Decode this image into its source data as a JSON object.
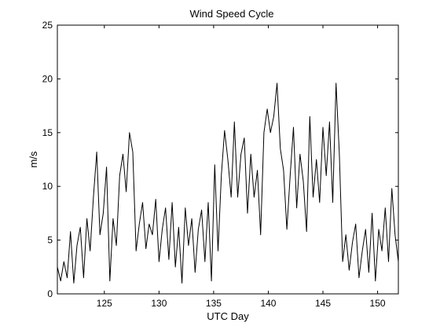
{
  "chart_data": {
    "type": "line",
    "title": "Wind Speed Cycle",
    "xlabel": "UTC Day",
    "ylabel": "m/s",
    "xlim": [
      120.7,
      151.9
    ],
    "ylim": [
      0,
      25
    ],
    "xticks": [
      125,
      130,
      135,
      140,
      145,
      150
    ],
    "yticks": [
      0,
      5,
      10,
      15,
      20,
      25
    ],
    "grid": false,
    "line_color": "#000000",
    "series": [
      {
        "x": [
          120.7,
          121.0,
          121.3,
          121.6,
          121.9,
          122.2,
          122.5,
          122.8,
          123.1,
          123.4,
          123.7,
          124.0,
          124.3,
          124.6,
          124.9,
          125.2,
          125.5,
          125.8,
          126.1,
          126.4,
          126.7,
          127.0,
          127.3,
          127.6,
          127.9,
          128.2,
          128.5,
          128.8,
          129.1,
          129.4,
          129.7,
          130.0,
          130.3,
          130.6,
          130.9,
          131.2,
          131.5,
          131.8,
          132.1,
          132.4,
          132.7,
          133.0,
          133.3,
          133.6,
          133.9,
          134.2,
          134.5,
          134.8,
          135.1,
          135.4,
          135.7,
          136.0,
          136.3,
          136.6,
          136.9,
          137.2,
          137.5,
          137.8,
          138.1,
          138.4,
          138.7,
          139.0,
          139.3,
          139.6,
          139.9,
          140.2,
          140.5,
          140.8,
          141.1,
          141.4,
          141.7,
          142.0,
          142.3,
          142.6,
          142.9,
          143.2,
          143.5,
          143.8,
          144.1,
          144.4,
          144.7,
          145.0,
          145.3,
          145.6,
          145.9,
          146.2,
          146.5,
          146.8,
          147.1,
          147.4,
          147.7,
          148.0,
          148.3,
          148.6,
          148.9,
          149.2,
          149.5,
          149.8,
          150.1,
          150.4,
          150.7,
          151.0,
          151.3,
          151.6,
          151.9
        ],
        "y": [
          2.5,
          1.2,
          3.0,
          1.5,
          5.8,
          1.0,
          4.5,
          6.2,
          1.5,
          7.0,
          4.0,
          9.0,
          13.2,
          5.5,
          7.5,
          11.8,
          1.2,
          7.0,
          4.5,
          11.0,
          13.0,
          9.5,
          15.0,
          13.2,
          4.0,
          6.5,
          8.5,
          4.2,
          6.5,
          5.5,
          8.8,
          3.0,
          6.0,
          8.0,
          3.2,
          8.5,
          2.5,
          6.2,
          1.0,
          8.0,
          4.5,
          7.0,
          2.0,
          6.0,
          7.8,
          3.0,
          8.5,
          1.2,
          12.0,
          4.0,
          11.0,
          15.2,
          12.5,
          9.0,
          16.0,
          9.0,
          13.0,
          14.5,
          7.5,
          13.0,
          9.0,
          11.5,
          5.5,
          15.0,
          17.2,
          15.0,
          16.5,
          19.6,
          13.5,
          11.5,
          6.0,
          11.0,
          15.5,
          8.0,
          13.0,
          10.5,
          5.8,
          16.5,
          9.0,
          12.5,
          8.5,
          15.5,
          11.0,
          16.0,
          8.5,
          19.6,
          13.0,
          3.0,
          5.5,
          2.2,
          4.8,
          6.5,
          1.5,
          4.0,
          6.0,
          2.0,
          7.5,
          1.2,
          6.0,
          4.0,
          8.0,
          3.0,
          9.8,
          5.5,
          3.0
        ]
      }
    ]
  }
}
